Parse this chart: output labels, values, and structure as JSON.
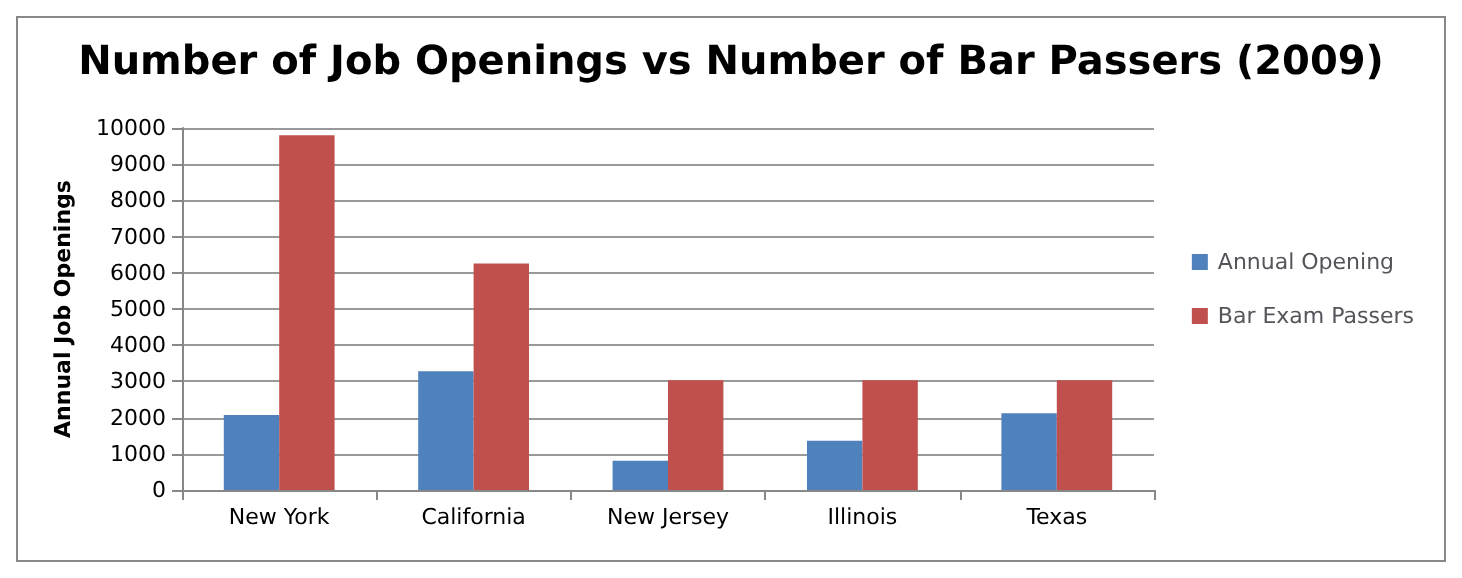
{
  "chart_data": {
    "type": "bar",
    "title": "Number of Job Openings vs Number of Bar Passers (2009)",
    "ylabel": "Annual Job Openings",
    "categories": [
      "New York",
      "California",
      "New Jersey",
      "Illinois",
      "Texas"
    ],
    "series": [
      {
        "name": "Annual Opening",
        "color": "#4f81bd",
        "values": [
          2070,
          3280,
          810,
          1360,
          2120
        ]
      },
      {
        "name": "Bar Exam Passers",
        "color": "#c0504d",
        "values": [
          9800,
          6260,
          3030,
          3030,
          3030
        ]
      }
    ],
    "ylim": [
      0,
      10000
    ],
    "yticks": [
      0,
      1000,
      2000,
      3000,
      4000,
      5000,
      6000,
      7000,
      8000,
      9000,
      10000
    ],
    "grid": "y",
    "legend": "right"
  }
}
